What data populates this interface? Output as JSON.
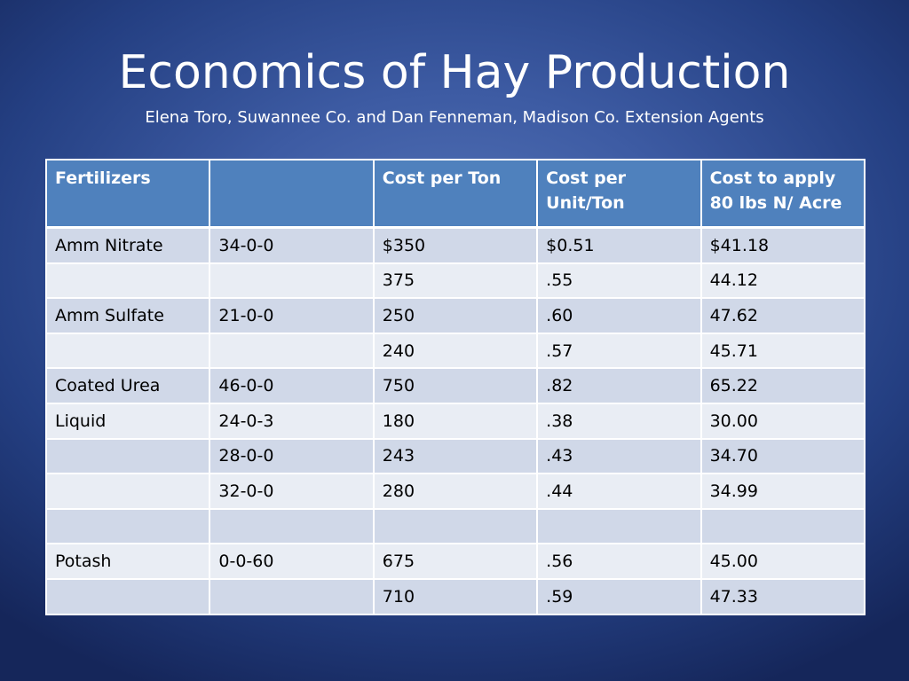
{
  "slide": {
    "title": "Economics of Hay Production",
    "subtitle": "Elena Toro, Suwannee Co. and Dan Fenneman, Madison Co. Extension  Agents"
  },
  "table": {
    "headers": [
      "Fertilizers",
      "",
      "Cost per Ton",
      "Cost per Unit/Ton",
      "Cost to apply 80 lbs N/ Acre"
    ],
    "rows": [
      [
        "Amm Nitrate",
        "34-0-0",
        "$350",
        "$0.51",
        "$41.18"
      ],
      [
        "",
        "",
        "375",
        ".55",
        "44.12"
      ],
      [
        "Amm Sulfate",
        "21-0-0",
        "250",
        ".60",
        "47.62"
      ],
      [
        "",
        "",
        "240",
        ".57",
        "45.71"
      ],
      [
        "Coated Urea",
        "46-0-0",
        "750",
        ".82",
        "65.22"
      ],
      [
        "Liquid",
        "24-0-3",
        "180",
        ".38",
        "30.00"
      ],
      [
        "",
        "28-0-0",
        "243",
        ".43",
        "34.70"
      ],
      [
        "",
        "32-0-0",
        "280",
        ".44",
        "34.99"
      ],
      [
        "",
        "",
        "",
        "",
        ""
      ],
      [
        "Potash",
        "0-0-60",
        "675",
        ".56",
        "45.00"
      ],
      [
        "",
        "",
        "710",
        ".59",
        "47.33"
      ]
    ]
  },
  "colors": {
    "background": "#3d5ba3",
    "header_fill": "#4f81bd",
    "row_fill_dark": "#d0d8e8",
    "row_fill_light": "#e9edf4"
  }
}
